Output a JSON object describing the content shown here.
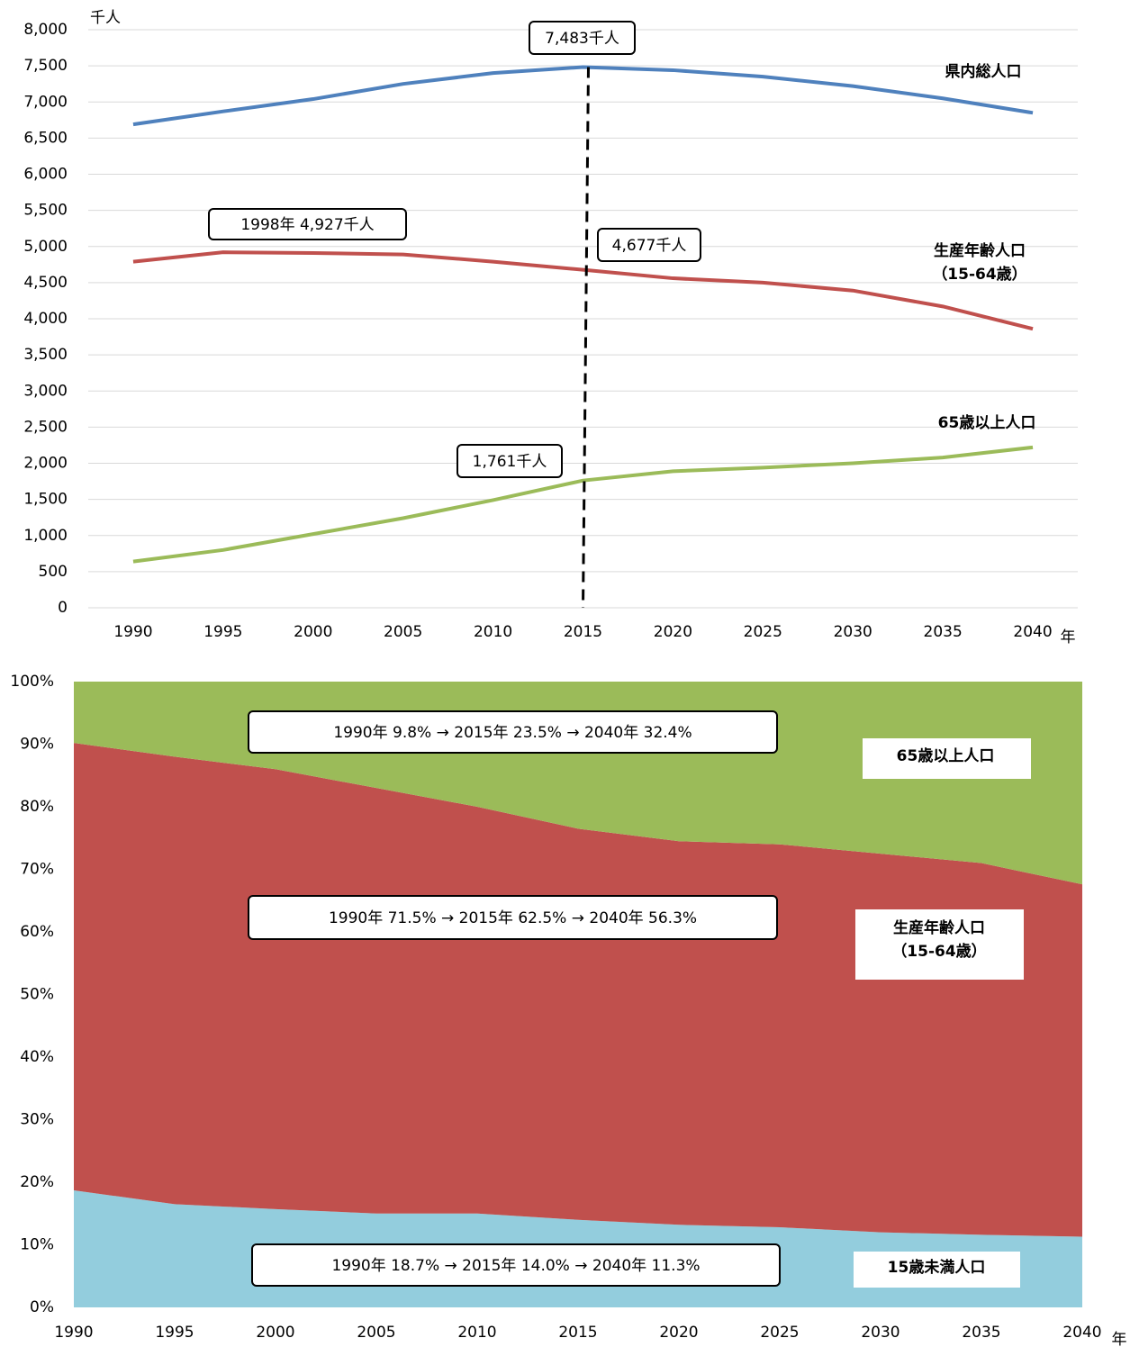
{
  "chart_data": [
    {
      "type": "line",
      "y_unit": "千人",
      "x_unit": "年",
      "x": [
        1990,
        1995,
        2000,
        2005,
        2010,
        2015,
        2020,
        2025,
        2030,
        2035,
        2040
      ],
      "xlim": [
        1987.5,
        2042.5
      ],
      "xticks": [
        1990,
        1995,
        2000,
        2005,
        2010,
        2015,
        2020,
        2025,
        2030,
        2035,
        2040
      ],
      "ylim": [
        0,
        8000
      ],
      "yticks": [
        0,
        500,
        {
          "value": 1000,
          "label": "1,000"
        },
        {
          "value": 1500,
          "label": "1,500"
        },
        {
          "value": 2000,
          "label": "2,000"
        },
        {
          "value": 2500,
          "label": "2,500"
        },
        {
          "value": 3000,
          "label": "3,000"
        },
        {
          "value": 3500,
          "label": "3,500"
        },
        {
          "value": 4000,
          "label": "4,000"
        },
        {
          "value": 4500,
          "label": "4,500"
        },
        {
          "value": 5000,
          "label": "5,000"
        },
        {
          "value": 5500,
          "label": "5,500"
        },
        {
          "value": 6000,
          "label": "6,000"
        },
        {
          "value": 6500,
          "label": "6,500"
        },
        {
          "value": 7000,
          "label": "7,000"
        },
        {
          "value": 7500,
          "label": "7,500"
        },
        {
          "value": 8000,
          "label": "8,000"
        }
      ],
      "grid": true,
      "reference_line_x": 2015,
      "series": [
        {
          "name": "県内総人口",
          "color": "#4f81bd",
          "values": [
            6690,
            6870,
            7040,
            7250,
            7400,
            7483,
            7440,
            7350,
            7220,
            7050,
            6850
          ]
        },
        {
          "name": "生産年齢人口（15-64歳）",
          "color": "#c0504d",
          "values": [
            4790,
            4920,
            4910,
            4890,
            4790,
            4677,
            4560,
            4500,
            4390,
            4170,
            3860
          ]
        },
        {
          "name": "65歳以上人口",
          "color": "#9bbb59",
          "values": [
            640,
            800,
            1020,
            1240,
            1490,
            1761,
            1890,
            1940,
            2000,
            2080,
            2220
          ]
        }
      ],
      "annotations": [
        "7,483千人",
        "1998年 4,927千人",
        "4,677千人",
        "1,761千人"
      ]
    },
    {
      "type": "area",
      "x_unit": "年",
      "x": [
        1990,
        1995,
        2000,
        2005,
        2010,
        2015,
        2020,
        2025,
        2030,
        2035,
        2040
      ],
      "xlim": [
        1990,
        2040
      ],
      "xticks": [
        1990,
        1995,
        2000,
        2005,
        2010,
        2015,
        2020,
        2025,
        2030,
        2035,
        2040
      ],
      "ylim": [
        0,
        100
      ],
      "yticks": [
        {
          "value": 0,
          "label": "0%"
        },
        {
          "value": 10,
          "label": "10%"
        },
        {
          "value": 20,
          "label": "20%"
        },
        {
          "value": 30,
          "label": "30%"
        },
        {
          "value": 40,
          "label": "40%"
        },
        {
          "value": 50,
          "label": "50%"
        },
        {
          "value": 60,
          "label": "60%"
        },
        {
          "value": 70,
          "label": "70%"
        },
        {
          "value": 80,
          "label": "80%"
        },
        {
          "value": 90,
          "label": "90%"
        },
        {
          "value": 100,
          "label": "100%"
        }
      ],
      "grid": false,
      "stacked": true,
      "series": [
        {
          "name": "15歳未満人口",
          "color": "#93cddd",
          "values": [
            18.7,
            16.5,
            15.7,
            15.0,
            15.0,
            14.0,
            13.2,
            12.8,
            12.0,
            11.6,
            11.3
          ]
        },
        {
          "name": "生産年齢人口（15-64歳）",
          "color": "#c0504d",
          "values": [
            71.5,
            71.5,
            70.3,
            68.0,
            65.0,
            62.5,
            61.3,
            61.2,
            60.5,
            59.4,
            56.3
          ]
        },
        {
          "name": "65歳以上人口",
          "color": "#9bbb59",
          "values": [
            9.8,
            12.0,
            14.0,
            17.0,
            20.0,
            23.5,
            25.5,
            26.0,
            27.5,
            29.0,
            32.4
          ]
        }
      ],
      "annotations": [
        "1990年 18.7% → 2015年 14.0% → 2040年 11.3%",
        "1990年 71.5% → 2015年 62.5% → 2040年 56.3%",
        "1990年 9.8% → 2015年 23.5% → 2040年 32.4%"
      ]
    }
  ]
}
